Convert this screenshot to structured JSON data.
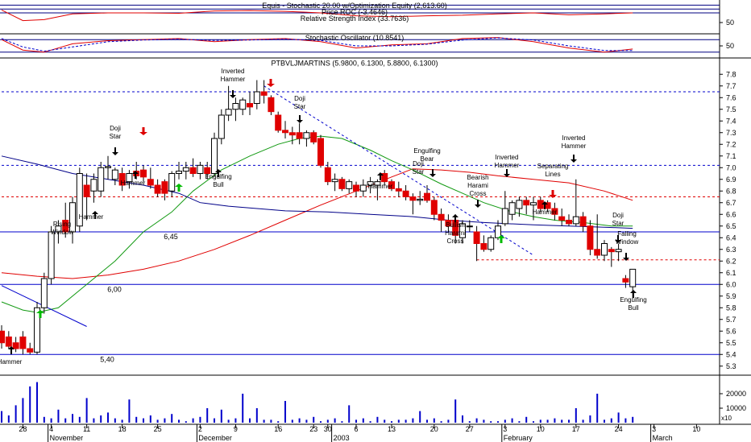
{
  "chart_data": [
    {
      "type": "line",
      "labels": [
        "Equis - Stochastic 20.00 w/Optimization Equity (2,613.60)",
        "Price ROC (-3.4646)",
        "Relative Strength Index (33.7636)"
      ],
      "ylim": [
        0,
        150
      ],
      "yticks": [
        50
      ],
      "levels": [
        140,
        120,
        100
      ],
      "series": [
        {
          "color": "#e00000",
          "x": [
            0,
            3,
            6,
            10,
            15,
            20,
            25,
            30,
            35,
            40,
            45,
            50,
            55,
            60,
            65,
            70,
            75,
            80,
            85,
            89
          ],
          "values": [
            115,
            60,
            65,
            95,
            100,
            100,
            98,
            110,
            112,
            108,
            100,
            85,
            80,
            85,
            88,
            95,
            100,
            90,
            95,
            100
          ]
        }
      ]
    },
    {
      "type": "line",
      "labels": [
        "Stochastic Oscillator (10.8541)"
      ],
      "ylim": [
        0,
        100
      ],
      "yticks": [
        50
      ],
      "levels": [
        80,
        20
      ],
      "series": [
        {
          "color": "#e00000",
          "x": [
            0,
            3,
            6,
            10,
            15,
            20,
            25,
            30,
            35,
            40,
            45,
            50,
            55,
            60,
            65,
            70,
            75,
            80,
            85,
            89
          ],
          "values": [
            80,
            30,
            20,
            60,
            75,
            80,
            85,
            70,
            80,
            85,
            70,
            40,
            55,
            60,
            85,
            90,
            70,
            40,
            20,
            35
          ]
        },
        {
          "color": "#0000cc",
          "x": [
            0,
            3,
            6,
            10,
            15,
            20,
            25,
            30,
            35,
            40,
            45,
            50,
            55,
            60,
            65,
            70,
            75,
            80,
            85,
            89
          ],
          "values": [
            85,
            45,
            25,
            45,
            70,
            78,
            82,
            76,
            78,
            82,
            76,
            50,
            50,
            58,
            78,
            88,
            78,
            50,
            28,
            28
          ]
        }
      ]
    },
    {
      "type": "candlestick",
      "title": "PTBVLJMARTINS (5.9800, 6.1300, 5.8800, 6.1300)",
      "up_color": "#ffffff",
      "down_color": "#e00000",
      "open": [
        5.6,
        5.55,
        5.5,
        5.55,
        5.45,
        5.42,
        5.8,
        6.05,
        6.45,
        6.55,
        6.45,
        6.5,
        6.85,
        6.8,
        6.8,
        7.0,
        6.9,
        6.95,
        6.88,
        6.97,
        6.98,
        6.9,
        6.85,
        6.88,
        6.8,
        6.95,
        6.97,
        7.0,
        6.95,
        7.0,
        6.95,
        7.25,
        7.45,
        7.5,
        7.5,
        7.55,
        7.55,
        7.65,
        7.6,
        7.45,
        7.32,
        7.3,
        7.3,
        7.25,
        7.3,
        7.25,
        7.0,
        6.88,
        6.9,
        6.82,
        6.85,
        6.8,
        6.85,
        6.85,
        6.95,
        6.88,
        6.82,
        6.8,
        6.75,
        6.72,
        6.78,
        6.72,
        6.6,
        6.55,
        6.55,
        6.4,
        6.5,
        6.45,
        6.35,
        6.3,
        6.4,
        6.52,
        6.6,
        6.65,
        6.72,
        6.68,
        6.72,
        6.7,
        6.65,
        6.58,
        6.55,
        6.52,
        6.58,
        6.5,
        6.3,
        6.25,
        6.3,
        6.28,
        6.05,
        5.98
      ],
      "high": [
        5.65,
        5.6,
        5.55,
        5.6,
        5.5,
        5.85,
        6.1,
        6.5,
        6.55,
        6.7,
        6.75,
        7.0,
        6.95,
        6.95,
        7.05,
        7.1,
        7.0,
        7.0,
        6.98,
        7.05,
        7.02,
        7.0,
        6.9,
        6.9,
        6.97,
        7.05,
        7.05,
        7.08,
        7.05,
        7.05,
        7.3,
        7.5,
        7.7,
        7.6,
        7.6,
        7.65,
        7.75,
        7.75,
        7.62,
        7.48,
        7.4,
        7.35,
        7.38,
        7.32,
        7.32,
        7.28,
        7.05,
        6.95,
        6.92,
        6.9,
        6.88,
        6.9,
        6.92,
        6.9,
        6.98,
        6.9,
        6.88,
        6.85,
        6.78,
        6.8,
        6.85,
        6.75,
        6.65,
        6.6,
        6.6,
        6.55,
        6.55,
        6.5,
        6.42,
        6.42,
        6.55,
        6.8,
        6.72,
        6.75,
        6.75,
        6.75,
        6.75,
        6.72,
        6.7,
        6.65,
        6.6,
        6.9,
        6.62,
        6.55,
        6.6,
        6.38,
        6.32,
        6.35,
        6.08,
        6.13
      ],
      "low": [
        5.45,
        5.45,
        5.42,
        5.4,
        5.4,
        5.4,
        5.75,
        6.0,
        6.35,
        6.4,
        6.35,
        6.45,
        6.55,
        6.7,
        6.75,
        6.9,
        6.85,
        6.8,
        6.82,
        6.9,
        6.88,
        6.82,
        6.75,
        6.72,
        6.75,
        6.9,
        6.9,
        6.92,
        6.9,
        6.9,
        6.92,
        7.2,
        7.4,
        7.4,
        7.45,
        7.45,
        7.5,
        7.55,
        7.45,
        7.3,
        7.25,
        7.2,
        7.2,
        7.18,
        7.2,
        7.0,
        6.85,
        6.8,
        6.8,
        6.78,
        6.75,
        6.75,
        6.78,
        6.72,
        6.85,
        6.8,
        6.75,
        6.72,
        6.6,
        6.68,
        6.7,
        6.55,
        6.45,
        6.45,
        6.35,
        6.35,
        6.45,
        6.2,
        6.28,
        6.28,
        6.38,
        6.5,
        6.55,
        6.58,
        6.6,
        6.55,
        6.62,
        6.62,
        6.55,
        6.5,
        6.5,
        6.5,
        6.45,
        6.25,
        6.22,
        6.2,
        6.15,
        6.2,
        5.97,
        5.88
      ],
      "close": [
        5.5,
        5.47,
        5.45,
        5.45,
        5.42,
        5.8,
        6.05,
        6.45,
        6.5,
        6.45,
        6.7,
        6.95,
        6.75,
        6.9,
        7.0,
        7.01,
        6.98,
        6.85,
        6.95,
        6.93,
        6.92,
        6.85,
        6.78,
        6.78,
        6.95,
        6.97,
        7.0,
        6.95,
        7.02,
        6.95,
        7.25,
        7.45,
        7.5,
        7.55,
        7.58,
        7.52,
        7.65,
        7.62,
        7.48,
        7.32,
        7.3,
        7.28,
        7.25,
        7.3,
        7.22,
        7.02,
        6.88,
        6.9,
        6.82,
        6.88,
        6.8,
        6.85,
        6.88,
        6.88,
        6.88,
        6.82,
        6.8,
        6.75,
        6.72,
        6.73,
        6.72,
        6.6,
        6.55,
        6.5,
        6.42,
        6.52,
        6.5,
        6.35,
        6.3,
        6.4,
        6.5,
        6.65,
        6.7,
        6.72,
        6.68,
        6.7,
        6.65,
        6.65,
        6.6,
        6.55,
        6.52,
        6.58,
        6.5,
        6.3,
        6.25,
        6.35,
        6.28,
        6.3,
        6.02,
        6.13
      ],
      "ylim": [
        5.25,
        7.85
      ],
      "yticks": [
        5.3,
        5.4,
        5.5,
        5.6,
        5.7,
        5.8,
        5.9,
        {
          "value": 6,
          "label": "6.0"
        },
        6.1,
        6.2,
        6.3,
        6.4,
        6.5,
        6.6,
        6.7,
        6.8,
        6.9,
        {
          "value": 7,
          "label": "7.0"
        },
        7.1,
        7.2,
        7.3,
        7.4,
        7.5,
        7.6,
        7.7,
        7.8
      ],
      "lines": [
        {
          "color": "#e00000",
          "x": [
            0,
            5,
            10,
            15,
            20,
            25,
            30,
            35,
            40,
            45,
            50,
            55,
            58,
            62,
            66,
            70,
            75,
            80,
            85,
            89
          ],
          "values": [
            6.1,
            6.07,
            6.05,
            6.08,
            6.13,
            6.2,
            6.3,
            6.42,
            6.55,
            6.68,
            6.8,
            6.92,
            6.99,
            6.98,
            6.96,
            6.93,
            6.9,
            6.87,
            6.8,
            6.72
          ]
        },
        {
          "color": "#119911",
          "x": [
            0,
            3,
            5,
            8,
            12,
            16,
            20,
            24,
            27,
            31,
            35,
            39,
            42,
            45,
            48,
            52,
            55,
            58,
            62,
            65,
            68,
            72,
            75,
            78,
            82,
            86,
            89
          ],
          "values": [
            5.85,
            5.78,
            5.76,
            5.8,
            6.0,
            6.2,
            6.45,
            6.62,
            6.8,
            6.98,
            7.1,
            7.2,
            7.25,
            7.27,
            7.25,
            7.15,
            7.06,
            6.98,
            6.86,
            6.78,
            6.7,
            6.62,
            6.58,
            6.55,
            6.53,
            6.5,
            6.5
          ]
        },
        {
          "color": "#000088",
          "x": [
            0,
            5,
            10,
            15,
            20,
            25,
            28,
            32,
            36,
            40,
            46,
            52,
            58,
            63,
            68,
            75,
            80,
            85,
            89
          ],
          "values": [
            7.1,
            7.03,
            6.95,
            6.9,
            6.85,
            6.78,
            6.7,
            6.67,
            6.65,
            6.63,
            6.62,
            6.6,
            6.58,
            6.55,
            6.53,
            6.51,
            6.5,
            6.49,
            6.48
          ]
        },
        {
          "color": "#0000cc",
          "x": [
            0,
            12
          ],
          "values": [
            5.99,
            5.64
          ]
        },
        {
          "color": "#0000cc",
          "dashed": true,
          "x": [
            37,
            75
          ],
          "values": [
            7.7,
            6.25
          ]
        }
      ],
      "levels": [
        {
          "value": 7.65,
          "color": "#0000cc"
        },
        {
          "value": 7.02,
          "color": "#0000cc"
        },
        {
          "value": 6.75,
          "color": "#e00000"
        },
        {
          "value": 6.21,
          "color": "#e00000"
        }
      ],
      "marked_levels": [
        {
          "value": 6.45,
          "label": "6,45"
        },
        {
          "value": 6,
          "label": "6,00"
        },
        {
          "value": 5.4,
          "label": "5,40"
        }
      ],
      "annotations": [
        [
          "Hammer"
        ],
        [
          "Rising",
          "Window"
        ],
        [
          "Hammer"
        ],
        [
          "Doji",
          "Star"
        ],
        [
          "Hammer"
        ],
        [
          "Inverted",
          "Hammer"
        ],
        [
          "Engulfing",
          "Bull"
        ],
        [
          "Doji",
          "Star"
        ],
        [
          "Engulfing",
          "Bear"
        ],
        [
          "Doji",
          "Star"
        ],
        [
          "Hammer"
        ],
        [
          "Bearish",
          "Harami",
          "Cross"
        ],
        [
          "Bullish",
          "Harami",
          "Cross"
        ],
        [
          "Inverted",
          "Hammer"
        ],
        [
          "Separating",
          "Lines"
        ],
        [
          "Hammer"
        ],
        [
          "Inverted",
          "Hammer"
        ],
        [
          "Doji",
          "Star"
        ],
        [
          "Falling",
          "Window"
        ],
        [
          "Engulfing",
          "Bull"
        ]
      ]
    },
    {
      "type": "bar",
      "color": "#0000cc",
      "y_label": "x10",
      "values": [
        8000,
        5000,
        12000,
        17000,
        25000,
        28000,
        4000,
        3000,
        9000,
        3000,
        6000,
        4000,
        17000,
        3000,
        5000,
        7000,
        3000,
        2000,
        16000,
        4000,
        3000,
        5000,
        2000,
        3000,
        6000,
        2000,
        1000,
        3000,
        4000,
        10000,
        3000,
        9000,
        2000,
        3000,
        20000,
        3000,
        10000,
        2000,
        2000,
        1000,
        15000,
        2000,
        3000,
        2000,
        4000,
        1000,
        2000,
        3000,
        1000,
        12000,
        2000,
        3000,
        1000,
        4000,
        2000,
        1000,
        2000,
        2000,
        3000,
        8000,
        2000,
        3000,
        1000,
        2000,
        16000,
        5000,
        1000,
        3000,
        2000,
        1000,
        1000,
        2000,
        3000,
        1000,
        4000,
        1000,
        2000,
        2000,
        3000,
        2000,
        2000,
        10000,
        2000,
        5000,
        20000,
        2000,
        3000,
        7000,
        3000,
        4000
      ],
      "ylim": [
        0,
        30000
      ],
      "yticks": [
        10000,
        20000
      ],
      "xlim": [
        -0.23,
        101.25
      ],
      "xticks": [
        {
          "value": 3,
          "label": "28"
        },
        {
          "value": 7,
          "label": "4"
        },
        {
          "value": 12,
          "label": "11"
        },
        {
          "value": 17,
          "label": "18"
        },
        {
          "value": 22,
          "label": "25"
        },
        {
          "value": 28,
          "label": "2"
        },
        {
          "value": 33,
          "label": "9"
        },
        {
          "value": 39,
          "label": "16"
        },
        {
          "value": 44,
          "label": "23"
        },
        {
          "value": 46,
          "label": "30"
        },
        {
          "value": 50,
          "label": "6"
        },
        {
          "value": 55,
          "label": "13"
        },
        {
          "value": 61,
          "label": "20"
        },
        {
          "value": 66,
          "label": "27"
        },
        {
          "value": 71,
          "label": "3"
        },
        {
          "value": 76,
          "label": "10"
        },
        {
          "value": 81,
          "label": "17"
        },
        {
          "value": 87,
          "label": "24"
        },
        {
          "value": 92,
          "label": "3"
        },
        {
          "value": 98,
          "label": "10"
        }
      ],
      "months": [
        {
          "value": 7,
          "label": "November"
        },
        {
          "value": 28,
          "label": "December"
        },
        {
          "value": 47,
          "label": "2003"
        },
        {
          "value": 71,
          "label": "February"
        },
        {
          "value": 92,
          "label": "March"
        }
      ]
    }
  ]
}
